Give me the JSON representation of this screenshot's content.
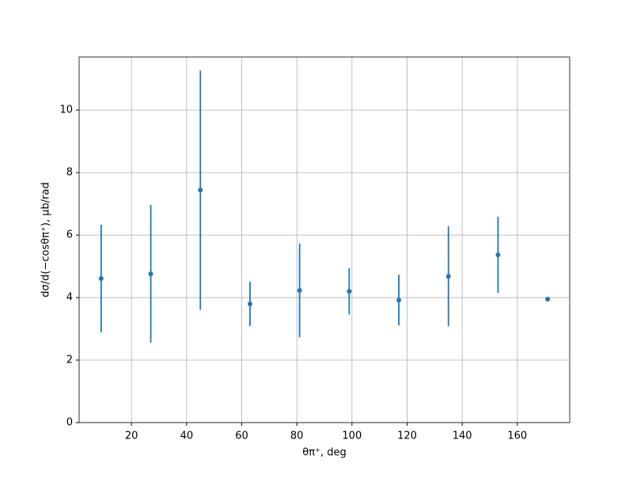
{
  "chart_data": {
    "type": "errorbar",
    "x_label": "θπ⁺, deg",
    "y_label": "dσ/d(−cosθπ⁺), μb/rad",
    "x": [
      9,
      27,
      45,
      63,
      81,
      99,
      117,
      135,
      153,
      171
    ],
    "series": [
      {
        "color": "#1f77b4",
        "values": [
          4.61,
          4.76,
          7.44,
          3.8,
          4.23,
          4.2,
          3.92,
          4.68,
          5.37,
          3.95
        ],
        "errors": [
          1.72,
          2.2,
          3.83,
          0.71,
          1.5,
          0.74,
          0.81,
          1.6,
          1.22,
          0
        ]
      }
    ],
    "xlim": [
      1,
      179
    ],
    "xticks": [
      20,
      40,
      60,
      80,
      100,
      120,
      140,
      160
    ],
    "ylim": [
      0,
      11.7
    ],
    "yticks": [
      0,
      2,
      4,
      6,
      8,
      10
    ],
    "grid": true
  }
}
